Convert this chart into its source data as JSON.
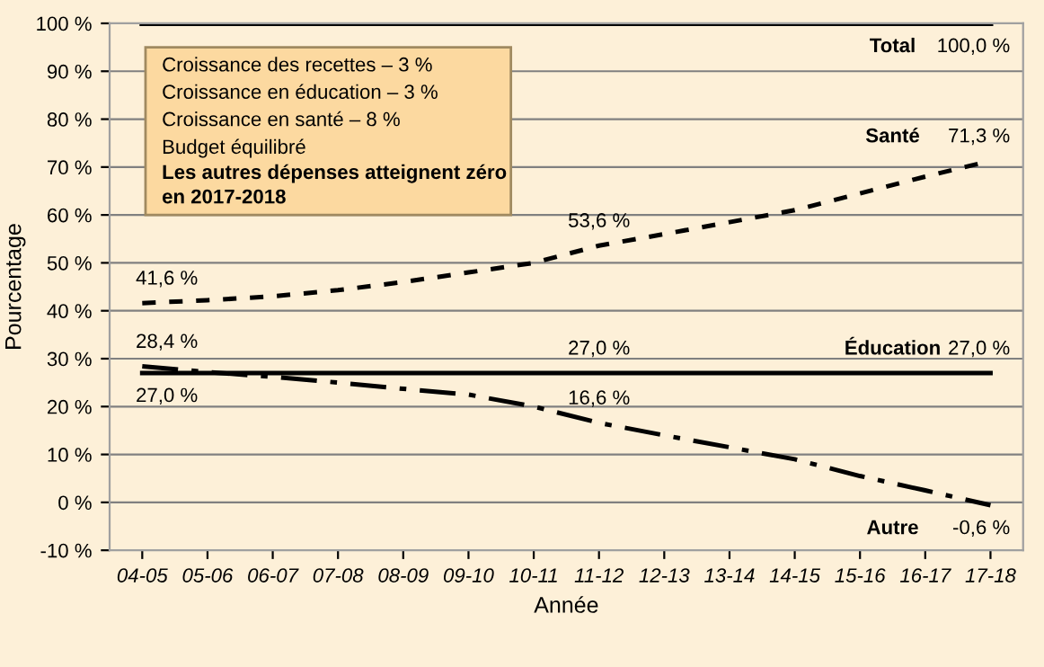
{
  "chart_data": {
    "type": "line",
    "xlabel": "Année",
    "ylabel": "Pourcentage",
    "categories": [
      "04-05",
      "05-06",
      "06-07",
      "07-08",
      "08-09",
      "09-10",
      "10-11",
      "11-12",
      "12-13",
      "13-14",
      "14-15",
      "15-16",
      "16-17",
      "17-18"
    ],
    "series": [
      {
        "name": "Total",
        "color": "#000000",
        "line_style": "solid",
        "values": [
          100,
          100,
          100,
          100,
          100,
          100,
          100,
          100,
          100,
          100,
          100,
          100,
          100,
          100
        ],
        "value_labels": [
          null,
          null,
          null,
          null,
          null,
          null,
          null,
          null,
          null,
          null,
          null,
          null,
          null,
          "100,0 %"
        ]
      },
      {
        "name": "Santé",
        "color": "#000000",
        "line_style": "dashed",
        "values": [
          41.6,
          42.2,
          43,
          44.3,
          46,
          48,
          50,
          53.6,
          56,
          58.5,
          61,
          64.5,
          68,
          71.3
        ],
        "value_labels": [
          "41,6 %",
          null,
          null,
          null,
          null,
          null,
          null,
          "53,6 %",
          null,
          null,
          null,
          null,
          null,
          "71,3 %"
        ]
      },
      {
        "name": "Éducation",
        "color": "#000000",
        "line_style": "solid",
        "values": [
          27,
          27,
          27,
          27,
          27,
          27,
          27,
          27,
          27,
          27,
          27,
          27,
          27,
          27
        ],
        "value_labels": [
          "27,0 %",
          null,
          null,
          null,
          null,
          null,
          null,
          "27,0 %",
          null,
          null,
          null,
          null,
          null,
          "27,0 %"
        ]
      },
      {
        "name": "Autre",
        "color": "#000000",
        "line_style": "dashdot",
        "values": [
          28.4,
          27.2,
          26.2,
          25,
          23.7,
          22.5,
          20,
          16.6,
          14,
          11.5,
          9,
          5.5,
          2.5,
          -0.6
        ],
        "value_labels": [
          "28,4 %",
          null,
          null,
          null,
          null,
          null,
          null,
          "16,6 %",
          null,
          null,
          null,
          null,
          null,
          "-0,6 %"
        ]
      }
    ],
    "ylim": [
      -10,
      100
    ],
    "yticks": [
      {
        "value": -10,
        "label": "-10 %"
      },
      {
        "value": 0,
        "label": "0 %"
      },
      {
        "value": 10,
        "label": "10 %"
      },
      {
        "value": 20,
        "label": "20 %"
      },
      {
        "value": 30,
        "label": "30 %"
      },
      {
        "value": 40,
        "label": "40 %"
      },
      {
        "value": 50,
        "label": "50 %"
      },
      {
        "value": 60,
        "label": "60 %"
      },
      {
        "value": 70,
        "label": "70 %"
      },
      {
        "value": 80,
        "label": "80 %"
      },
      {
        "value": 90,
        "label": "90 %"
      },
      {
        "value": 100,
        "label": "100 %"
      }
    ],
    "grid": "y",
    "legend": false,
    "marker": "none",
    "annotations": [
      "Croissance des recettes – 3 %",
      "Croissance en éducation – 3 %",
      "Croissance en santé – 8 %",
      "Budget équilibré",
      "Les autres dépenses atteignent zéro\nen 2017-2018"
    ]
  }
}
